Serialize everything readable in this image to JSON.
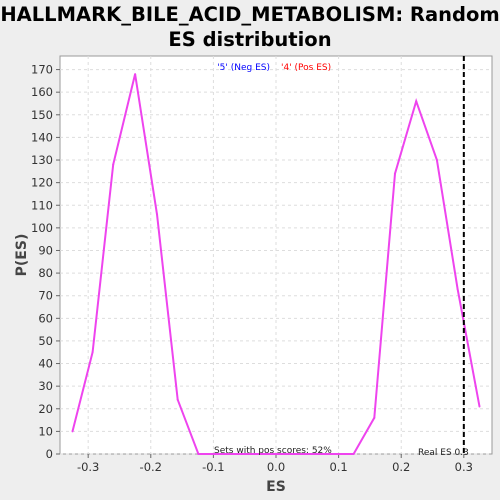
{
  "chart_data": {
    "type": "line",
    "title_line1": "HALLMARK_BILE_ACID_METABOLISM: Random",
    "title_line2": "ES distribution",
    "xlabel": "ES",
    "ylabel": "P(ES)",
    "xlim": [
      -0.345,
      0.345
    ],
    "ylim": [
      0,
      176
    ],
    "x_ticks": [
      -0.3,
      -0.2,
      -0.1,
      0.0,
      0.1,
      0.2,
      0.3
    ],
    "x_tick_labels": [
      "-0.3",
      "-0.2",
      "-0.1",
      "0.0",
      "0.1",
      "0.2",
      "0.3"
    ],
    "y_ticks": [
      0,
      10,
      20,
      30,
      40,
      50,
      60,
      70,
      80,
      90,
      100,
      110,
      120,
      130,
      140,
      150,
      160,
      170
    ],
    "y_tick_labels": [
      "0",
      "10",
      "20",
      "30",
      "40",
      "50",
      "60",
      "70",
      "80",
      "90",
      "100",
      "110",
      "120",
      "130",
      "140",
      "150",
      "160",
      "170"
    ],
    "grid": true,
    "legend": {
      "placement": "top-center",
      "entries": [
        {
          "label": "'5' (Neg ES)",
          "color": "#0000ff"
        },
        {
          "label": "'4' (Pos ES)",
          "color": "#ff0000"
        }
      ]
    },
    "series": [
      {
        "color": "#ee44ee",
        "x": [
          -0.325,
          -0.293,
          -0.26,
          -0.225,
          -0.19,
          -0.157,
          -0.124,
          -0.09,
          -0.057,
          -0.023,
          0.01,
          0.043,
          0.077,
          0.11,
          0.124,
          0.157,
          0.19,
          0.224,
          0.257,
          0.29,
          0.325
        ],
        "y": [
          10,
          45,
          128,
          168,
          106,
          24,
          0,
          0,
          0,
          0,
          0,
          0,
          0,
          0,
          0,
          16,
          124,
          156,
          130,
          73,
          21
        ]
      }
    ],
    "real_es": 0.3,
    "annotations": {
      "pos_scores": "Sets with pos scores: 52%",
      "real_es": "Real ES 0.3"
    }
  },
  "colors": {
    "background": "#eeeeee",
    "plot_background": "#ffffff",
    "grid": "#dddddd",
    "line": "#ee44ee"
  }
}
